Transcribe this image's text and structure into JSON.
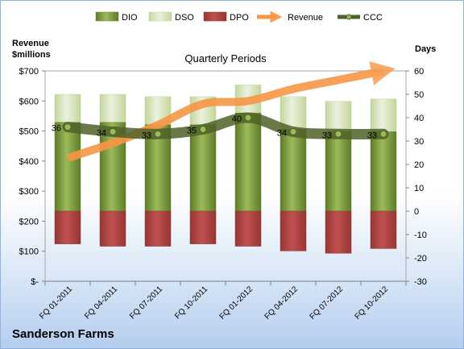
{
  "chart_data": {
    "type": "bar",
    "title": "Quarterly Periods",
    "brand": "Sanderson Farms",
    "left_axis": {
      "label_line1": "Revenue",
      "label_line2": "$millions",
      "ticks": [
        "$-",
        "$100",
        "$200",
        "$300",
        "$400",
        "$500",
        "$600",
        "$700"
      ],
      "ylim": [
        0,
        700
      ]
    },
    "right_axis": {
      "label": "Days",
      "ticks": [
        "-30",
        "-20",
        "-10",
        "0",
        "10",
        "20",
        "30",
        "40",
        "50",
        "60"
      ],
      "ylim": [
        -30,
        60
      ]
    },
    "categories": [
      "FQ 01-2011",
      "FQ 04-2011",
      "FQ 07-2011",
      "FQ 10-2011",
      "FQ 01-2012",
      "FQ 04-2012",
      "FQ 07-2012",
      "FQ 10-2012"
    ],
    "legend": [
      "DIO",
      "DSO",
      "DPO",
      "Revenue",
      "CCC"
    ],
    "legend_position": "top",
    "grid": false,
    "series": [
      {
        "name": "DIO",
        "axis": "right",
        "color": "#77933c",
        "values": [
          38,
          38,
          37,
          37,
          42,
          35,
          34,
          34
        ]
      },
      {
        "name": "DSO",
        "axis": "right",
        "color": "#d7e4bd",
        "values": [
          12,
          12,
          12,
          12,
          12,
          14,
          13,
          14
        ]
      },
      {
        "name": "DPO",
        "axis": "right",
        "color": "#c0504d",
        "values": [
          -14,
          -15,
          -15,
          -14,
          -15,
          -17,
          -18,
          -16
        ]
      },
      {
        "name": "Revenue",
        "axis": "left",
        "color": "#f79646",
        "values": [
          410,
          460,
          520,
          590,
          600,
          640,
          670,
          700
        ]
      },
      {
        "name": "CCC",
        "axis": "right",
        "color": "#4f6228",
        "values": [
          36,
          34,
          33,
          35,
          40,
          34,
          33,
          33
        ],
        "labels": [
          "36",
          "34",
          "33",
          "35",
          "40",
          "34",
          "33",
          "33"
        ]
      }
    ]
  }
}
